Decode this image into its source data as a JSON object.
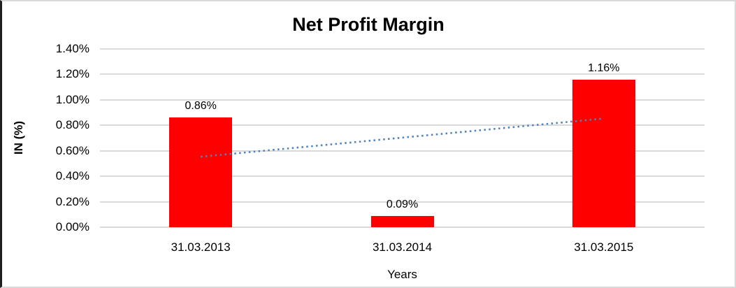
{
  "chart_data": {
    "type": "bar",
    "title": "Net Profit Margin",
    "xlabel": "Years",
    "ylabel": "IN (%)",
    "categories": [
      "31.03.2013",
      "31.03.2014",
      "31.03.2015"
    ],
    "values": [
      0.86,
      0.09,
      1.16
    ],
    "value_labels": [
      "0.86%",
      "0.09%",
      "1.16%"
    ],
    "ylim": [
      0,
      1.4
    ],
    "ytick_step": 0.2,
    "ytick_labels": [
      "0.00%",
      "0.20%",
      "0.40%",
      "0.60%",
      "0.80%",
      "1.00%",
      "1.20%",
      "1.40%"
    ],
    "grid": true,
    "legend": "none",
    "bar_color": "#ff0000",
    "gridline_color": "#d9d9d9",
    "text_color": "#000000",
    "frame_border_color": "#d9d9d9",
    "trendline": {
      "type": "linear",
      "style": "dotted",
      "color": "#4f81bd"
    }
  }
}
